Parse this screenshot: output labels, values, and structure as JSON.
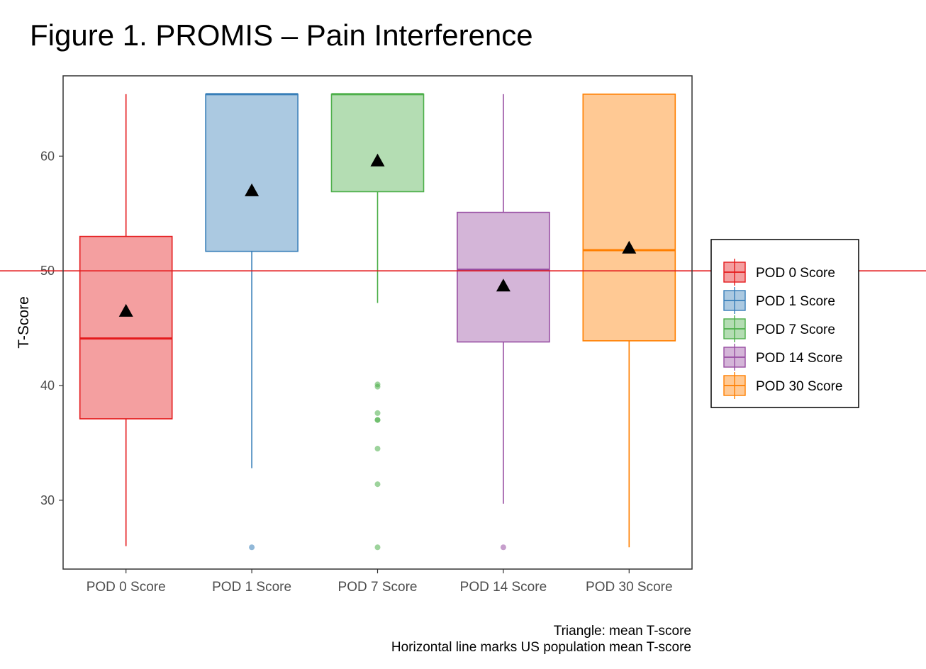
{
  "title": "Figure 1. PROMIS – Pain Interference",
  "captions": [
    "Triangle: mean T-score",
    "Horizontal line marks US population mean T-score"
  ],
  "chart_data": {
    "type": "boxplot",
    "ylabel": "T-Score",
    "xlabel": "",
    "ylim": [
      24.0,
      67.0
    ],
    "yticks": [
      30,
      40,
      50,
      60
    ],
    "reference_line": {
      "y": 50,
      "color": "#e41a1c"
    },
    "grid": false,
    "legend": {
      "position": "right"
    },
    "categories": [
      "POD 0 Score",
      "POD 1 Score",
      "POD 7 Score",
      "POD 14 Score",
      "POD 30 Score"
    ],
    "series": [
      {
        "name": "POD 0 Score",
        "color": "#e41a1c",
        "whisker_low": 26.0,
        "q1": 37.1,
        "median": 44.1,
        "q3": 53.0,
        "whisker_high": 65.4,
        "mean": 46.5,
        "outliers": []
      },
      {
        "name": "POD 1 Score",
        "color": "#377eb8",
        "whisker_low": 32.8,
        "q1": 51.7,
        "median": 65.4,
        "q3": 65.4,
        "whisker_high": 65.4,
        "mean": 57.0,
        "outliers": [
          25.9
        ]
      },
      {
        "name": "POD 7 Score",
        "color": "#4daf4a",
        "whisker_low": 47.2,
        "q1": 56.9,
        "median": 65.4,
        "q3": 65.4,
        "whisker_high": 65.4,
        "mean": 59.6,
        "outliers": [
          40.1,
          39.9,
          37.6,
          37.0,
          37.0,
          34.5,
          31.4,
          25.9
        ]
      },
      {
        "name": "POD 14 Score",
        "color": "#984ea3",
        "whisker_low": 29.7,
        "q1": 43.8,
        "median": 50.1,
        "q3": 55.1,
        "whisker_high": 65.4,
        "mean": 48.7,
        "outliers": [
          25.9
        ]
      },
      {
        "name": "POD 30 Score",
        "color": "#ff7f00",
        "whisker_low": 25.9,
        "q1": 43.9,
        "median": 51.8,
        "q3": 65.4,
        "whisker_high": 65.4,
        "mean": 52.0,
        "outliers": []
      }
    ]
  }
}
